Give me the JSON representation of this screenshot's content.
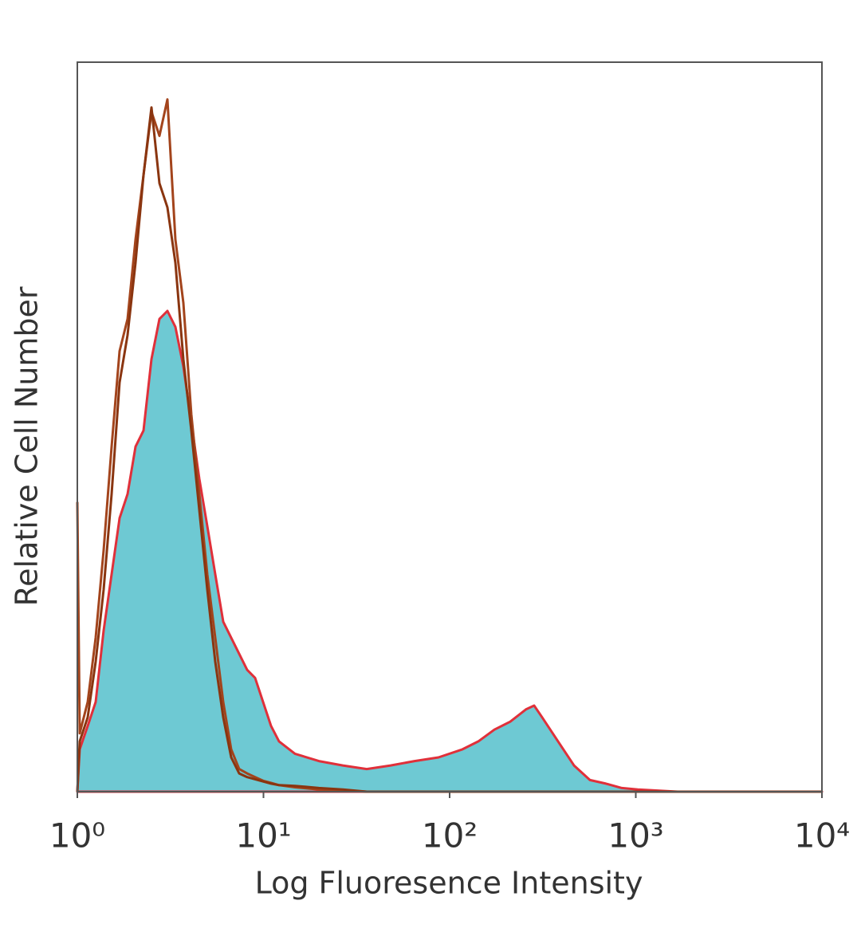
{
  "chart_data": {
    "type": "area",
    "xlabel": "Log Fluoresence Intensity",
    "ylabel": "Relative Cell Number",
    "xlog": true,
    "xlim": [
      1,
      10000
    ],
    "xticks": [
      {
        "value": 1,
        "label": "10⁰"
      },
      {
        "value": 10,
        "label": "10¹"
      },
      {
        "value": 100,
        "label": "10²"
      },
      {
        "value": 1000,
        "label": "10³"
      },
      {
        "value": 10000,
        "label": "10⁴"
      }
    ],
    "ylim": [
      0,
      100
    ],
    "x": [
      1,
      1.03,
      1.137,
      1.254,
      1.384,
      1.528,
      1.687,
      1.862,
      2.054,
      2.267,
      2.502,
      2.761,
      3.047,
      3.364,
      3.712,
      4.098,
      4.522,
      4.991,
      5.508,
      6.078,
      6.709,
      7.404,
      8.172,
      9.02,
      9.95,
      10.98,
      12.12,
      14.76,
      19.85,
      26.68,
      35.86,
      48.2,
      64.8,
      87.1,
      117.1,
      142.6,
      173.8,
      211.6,
      257.7,
      284.4,
      313.9,
      382.3,
      465.7,
      567.2,
      690.8,
      841.5,
      1025,
      1678,
      10000
    ],
    "series": [
      {
        "color": "#e0303a",
        "fill": "#6ec9d3",
        "values": [
          0,
          5.8,
          9.0,
          12.3,
          22.1,
          29.8,
          37.5,
          40.8,
          47.3,
          49.5,
          59.3,
          64.8,
          65.9,
          63.7,
          58.3,
          50.6,
          42.9,
          36.4,
          29.8,
          23.3,
          21.1,
          18.9,
          16.7,
          15.6,
          12.3,
          9.0,
          6.9,
          5.2,
          4.2,
          3.6,
          3.1,
          3.6,
          4.2,
          4.7,
          5.8,
          6.9,
          8.5,
          9.6,
          11.3,
          11.8,
          10.2,
          6.9,
          3.6,
          1.6,
          1.1,
          0.5,
          0.3,
          0,
          0
        ]
      },
      {
        "color": "#a3441c",
        "values": [
          39.7,
          8,
          12.3,
          21.1,
          33.1,
          47.3,
          60.4,
          64.8,
          75.7,
          84.5,
          93.2,
          89.9,
          94.9,
          75.7,
          67,
          51.7,
          40.8,
          29.8,
          21.1,
          12.3,
          5.8,
          3.1,
          2.5,
          2,
          1.5,
          1.2,
          0.9,
          0.6,
          0.3,
          0.2,
          0,
          0,
          0,
          0,
          0,
          0,
          0,
          0,
          0,
          0,
          0,
          0,
          0,
          0,
          0,
          0,
          0,
          0,
          0
        ]
      },
      {
        "color": "#8a3510",
        "values": [
          0,
          6.9,
          10.2,
          17.8,
          27.7,
          40.8,
          56.1,
          62.6,
          72.5,
          84.5,
          93.8,
          83.4,
          80.1,
          72.5,
          59.3,
          49.5,
          38.6,
          27.7,
          17.8,
          10.2,
          4.7,
          2.5,
          2,
          1.7,
          1.4,
          1.1,
          0.9,
          0.8,
          0.5,
          0.3,
          0,
          0,
          0,
          0,
          0,
          0,
          0,
          0,
          0,
          0,
          0,
          0,
          0,
          0,
          0,
          0,
          0,
          0,
          0
        ]
      }
    ]
  }
}
